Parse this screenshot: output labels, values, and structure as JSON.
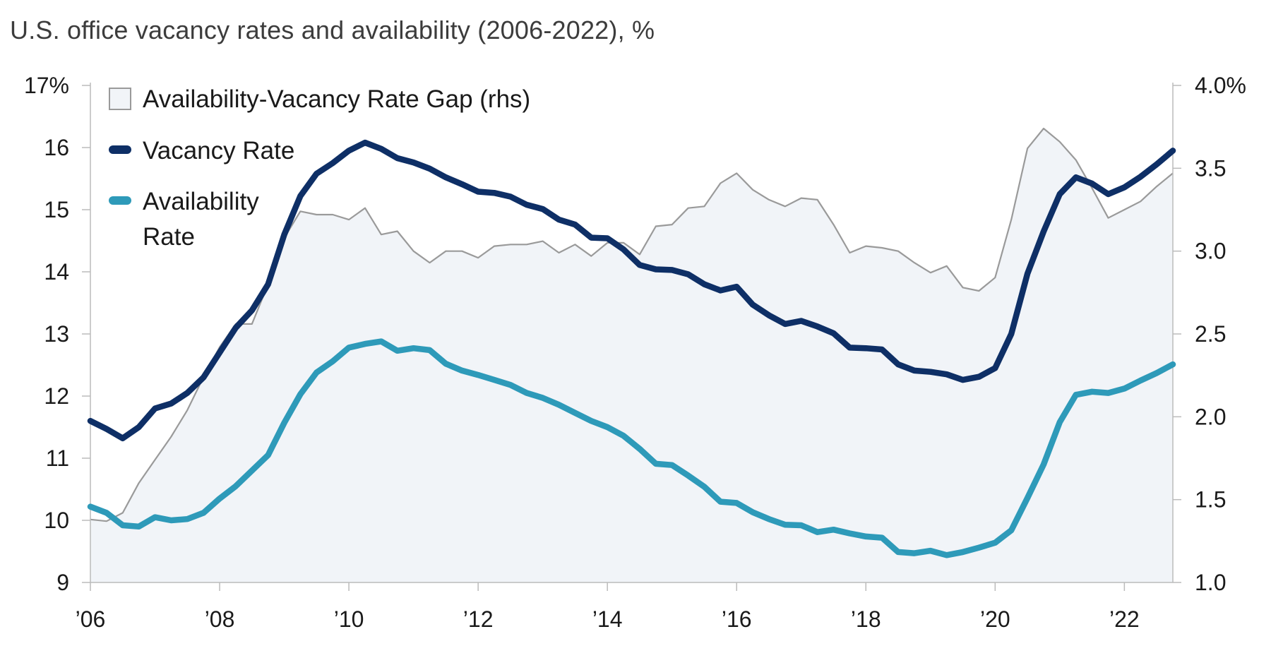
{
  "title": "U.S. office vacancy rates and availability (2006-2022), %",
  "colors": {
    "vacancy": "#0e2f66",
    "availability": "#2e9ab9",
    "gap_fill": "#f1f4f8",
    "gap_line": "#9a9a9a",
    "axis": "#bbbbbb"
  },
  "chart_data": {
    "type": "line",
    "title": "U.S. office vacancy rates and availability (2006-2022), %",
    "x_start": 2006,
    "x_end": 2022.75,
    "x_step": 0.25,
    "x_ticks": [
      {
        "value": 2006,
        "label": "’06"
      },
      {
        "value": 2008,
        "label": "’08"
      },
      {
        "value": 2010,
        "label": "’10"
      },
      {
        "value": 2012,
        "label": "’12"
      },
      {
        "value": 2014,
        "label": "’14"
      },
      {
        "value": 2016,
        "label": "’16"
      },
      {
        "value": 2018,
        "label": "’18"
      },
      {
        "value": 2020,
        "label": "’20"
      },
      {
        "value": 2022,
        "label": "’22"
      }
    ],
    "y_left": {
      "min": 9,
      "max": 17,
      "ticks": [
        {
          "value": 17,
          "label": "17%"
        },
        {
          "value": 16,
          "label": "16"
        },
        {
          "value": 15,
          "label": "15"
        },
        {
          "value": 14,
          "label": "14"
        },
        {
          "value": 13,
          "label": "13"
        },
        {
          "value": 12,
          "label": "12"
        },
        {
          "value": 11,
          "label": "11"
        },
        {
          "value": 10,
          "label": "10"
        },
        {
          "value": 9,
          "label": "9"
        }
      ]
    },
    "y_right": {
      "min": 1.0,
      "max": 4.0,
      "ticks": [
        {
          "value": 4.0,
          "label": "4.0%"
        },
        {
          "value": 3.5,
          "label": "3.5"
        },
        {
          "value": 3.0,
          "label": "3.0"
        },
        {
          "value": 2.5,
          "label": "2.5"
        },
        {
          "value": 2.0,
          "label": "2.0"
        },
        {
          "value": 1.5,
          "label": "1.5"
        },
        {
          "value": 1.0,
          "label": "1.0"
        }
      ]
    },
    "legend": [
      {
        "key": "gap",
        "label": "Availability-Vacancy Rate Gap (rhs)"
      },
      {
        "key": "vacancy",
        "label": "Vacancy Rate"
      },
      {
        "key": "availability",
        "label_lines": [
          "Availability",
          "Rate"
        ]
      }
    ],
    "series": [
      {
        "name": "Vacancy Rate",
        "key": "vacancy",
        "axis": "left",
        "values": [
          11.6,
          11.47,
          11.32,
          11.5,
          11.8,
          11.88,
          12.05,
          12.3,
          12.7,
          13.1,
          13.38,
          13.8,
          14.6,
          15.22,
          15.58,
          15.75,
          15.95,
          16.08,
          15.98,
          15.83,
          15.76,
          15.66,
          15.52,
          15.41,
          15.29,
          15.27,
          15.21,
          15.08,
          15.01,
          14.84,
          14.76,
          14.55,
          14.54,
          14.36,
          14.11,
          14.04,
          14.03,
          13.96,
          13.8,
          13.7,
          13.76,
          13.47,
          13.3,
          13.16,
          13.21,
          13.12,
          13.01,
          12.78,
          12.77,
          12.75,
          12.51,
          12.41,
          12.39,
          12.35,
          12.26,
          12.31,
          12.45,
          13.0,
          13.97,
          14.65,
          15.25,
          15.52,
          15.42,
          15.25,
          15.36,
          15.53,
          15.73,
          15.95
        ]
      },
      {
        "name": "Availability Rate",
        "key": "availability",
        "axis": "left",
        "values": [
          10.22,
          10.12,
          9.92,
          9.9,
          10.05,
          10.0,
          10.02,
          10.12,
          10.35,
          10.55,
          10.8,
          11.05,
          11.57,
          12.03,
          12.38,
          12.56,
          12.78,
          12.84,
          12.88,
          12.73,
          12.77,
          12.74,
          12.52,
          12.41,
          12.34,
          12.26,
          12.18,
          12.05,
          11.97,
          11.86,
          11.73,
          11.6,
          11.5,
          11.36,
          11.15,
          10.91,
          10.89,
          10.72,
          10.54,
          10.3,
          10.28,
          10.13,
          10.02,
          9.93,
          9.92,
          9.81,
          9.85,
          9.79,
          9.74,
          9.72,
          9.49,
          9.47,
          9.51,
          9.44,
          9.49,
          9.56,
          9.64,
          9.84,
          10.36,
          10.9,
          11.58,
          12.02,
          12.07,
          12.05,
          12.12,
          12.25,
          12.37,
          12.51
        ]
      },
      {
        "name": "Availability-Vacancy Rate Gap (rhs)",
        "key": "gap",
        "axis": "right",
        "type": "area",
        "values": [
          1.38,
          1.37,
          1.42,
          1.6,
          1.74,
          1.88,
          2.04,
          2.24,
          2.42,
          2.56,
          2.56,
          2.8,
          3.08,
          3.24,
          3.22,
          3.22,
          3.19,
          3.26,
          3.1,
          3.12,
          3.0,
          2.93,
          3.0,
          3.0,
          2.96,
          3.03,
          3.04,
          3.04,
          3.06,
          2.99,
          3.04,
          2.97,
          3.05,
          3.05,
          2.98,
          3.15,
          3.16,
          3.26,
          3.27,
          3.41,
          3.47,
          3.37,
          3.31,
          3.27,
          3.32,
          3.31,
          3.16,
          2.99,
          3.03,
          3.02,
          3.0,
          2.93,
          2.87,
          2.91,
          2.78,
          2.76,
          2.84,
          3.19,
          3.62,
          3.74,
          3.66,
          3.55,
          3.38,
          3.2,
          3.25,
          3.3,
          3.39,
          3.47
        ]
      }
    ]
  }
}
